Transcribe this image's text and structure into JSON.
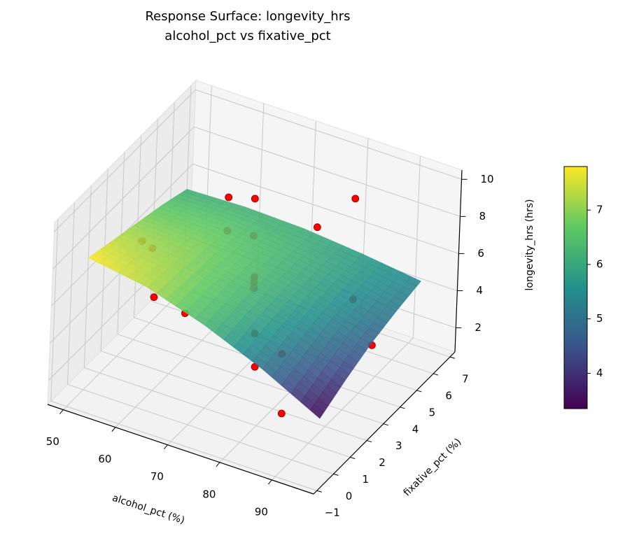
{
  "chart_data": {
    "type": "surface3d",
    "title": "Response Surface: longevity_hrs",
    "subtitle": "alcohol_pct vs fixative_pct",
    "xlabel": "alcohol_pct (%)",
    "ylabel": "fixative_pct (%)",
    "zlabel": "longevity_hrs (hrs)",
    "xlim": [
      47,
      98
    ],
    "xticks": [
      50,
      60,
      70,
      80,
      90
    ],
    "ylim": [
      -1.2,
      7.3
    ],
    "yticks": [
      {
        "value": -1,
        "label": "−1"
      },
      0,
      1,
      2,
      3,
      4,
      5,
      6,
      7
    ],
    "zlim": [
      0.7,
      10.5
    ],
    "zticks": [
      2,
      4,
      6,
      8,
      10
    ],
    "grid": true,
    "colormap": "viridis",
    "surface": {
      "x": [
        50,
        61.25,
        72.5,
        83.75,
        95
      ],
      "y": [
        0,
        1.5,
        3,
        4.5,
        6
      ],
      "z": [
        [
          7.8,
          7.3,
          6.3,
          5.0,
          3.4
        ],
        [
          7.4,
          7.1,
          6.4,
          5.4,
          4.1
        ],
        [
          7.0,
          6.9,
          6.4,
          5.7,
          4.7
        ],
        [
          6.6,
          6.6,
          6.3,
          5.8,
          5.1
        ],
        [
          6.1,
          6.2,
          6.1,
          5.8,
          5.4
        ]
      ]
    },
    "points": {
      "color": "#ff0000",
      "x": [
        61,
        66,
        85,
        78,
        51,
        53,
        61,
        66,
        72.5,
        72.5,
        72.5,
        59.7,
        65.7,
        85.3,
        73,
        78.3,
        79.3,
        89.2,
        84.7
      ],
      "y": [
        5,
        5,
        5,
        5,
        3,
        3,
        5,
        5,
        3,
        3,
        3,
        1,
        1,
        5,
        3,
        3,
        1,
        5,
        1
      ],
      "z": [
        7.6,
        8.0,
        9.8,
        7.6,
        6.1,
        5.9,
        5.8,
        6.0,
        6.2,
        5.9,
        5.6,
        5.7,
        5.4,
        4.4,
        3.2,
        2.6,
        3.8,
        2.3,
        1.8
      ]
    },
    "colorbar": {
      "lim": [
        3.35,
        7.8
      ],
      "ticks": [
        4,
        5,
        6,
        7
      ]
    }
  }
}
